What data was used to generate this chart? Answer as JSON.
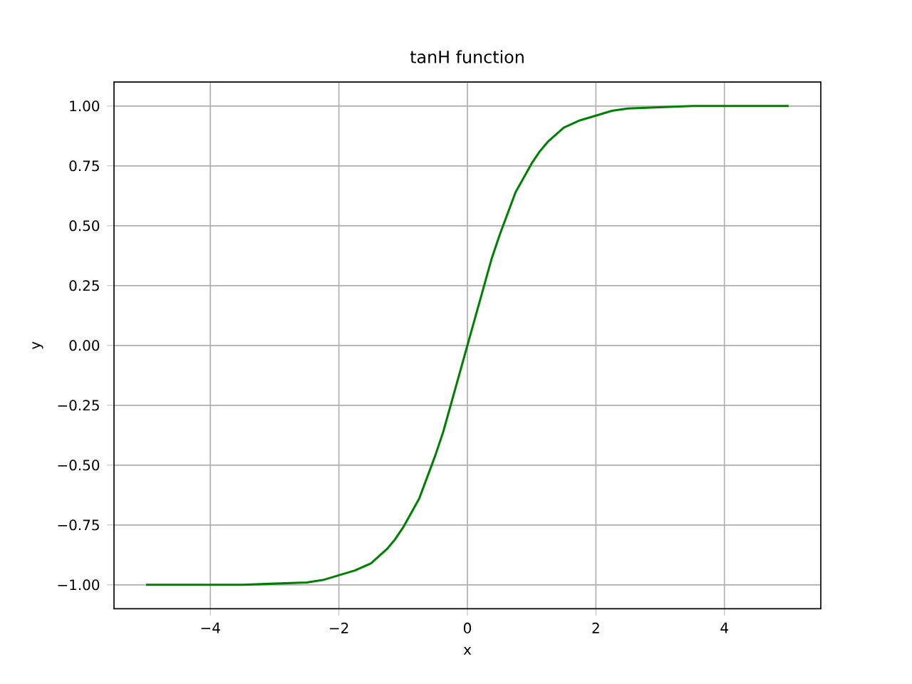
{
  "chart_data": {
    "type": "line",
    "title": "tanH function",
    "xlabel": "x",
    "ylabel": "y",
    "x": [
      -5,
      -4.5,
      -4,
      -3.5,
      -3,
      -2.5,
      -2.25,
      -2,
      -1.75,
      -1.5,
      -1.25,
      -1.125,
      -1,
      -0.875,
      -0.75,
      -0.625,
      -0.5,
      -0.375,
      -0.25,
      -0.125,
      0,
      0.125,
      0.25,
      0.375,
      0.5,
      0.625,
      0.75,
      0.875,
      1,
      1.125,
      1.25,
      1.5,
      1.75,
      2,
      2.25,
      2.5,
      3,
      3.5,
      4,
      4.5,
      5
    ],
    "series": [
      {
        "color": "#008000",
        "values": [
          -1.0,
          -1.0,
          -1.0,
          -1.0,
          -0.995,
          -0.99,
          -0.98,
          -0.96,
          -0.94,
          -0.91,
          -0.85,
          -0.81,
          -0.76,
          -0.7,
          -0.64,
          -0.55,
          -0.46,
          -0.36,
          -0.24,
          -0.12,
          0,
          0.12,
          0.24,
          0.36,
          0.46,
          0.55,
          0.64,
          0.7,
          0.76,
          0.81,
          0.85,
          0.91,
          0.94,
          0.96,
          0.98,
          0.99,
          0.995,
          1.0,
          1.0,
          1.0,
          1.0
        ]
      }
    ],
    "xlim": [
      -5.5,
      5.5
    ],
    "ylim": [
      -1.1,
      1.1
    ],
    "xticks": [
      {
        "value": -4,
        "label": "−4"
      },
      {
        "value": -2,
        "label": "−2"
      },
      {
        "value": 0,
        "label": "0"
      },
      {
        "value": 2,
        "label": "2"
      },
      {
        "value": 4,
        "label": "4"
      }
    ],
    "yticks": [
      {
        "value": -1,
        "label": "−1.00"
      },
      {
        "value": -0.75,
        "label": "−0.75"
      },
      {
        "value": -0.5,
        "label": "−0.50"
      },
      {
        "value": -0.25,
        "label": "−0.25"
      },
      {
        "value": 0,
        "label": "0.00"
      },
      {
        "value": 0.25,
        "label": "0.25"
      },
      {
        "value": 0.5,
        "label": "0.50"
      },
      {
        "value": 0.75,
        "label": "0.75"
      },
      {
        "value": 1,
        "label": "1.00"
      }
    ],
    "grid": true,
    "marker": "none",
    "line_style": "solid"
  }
}
